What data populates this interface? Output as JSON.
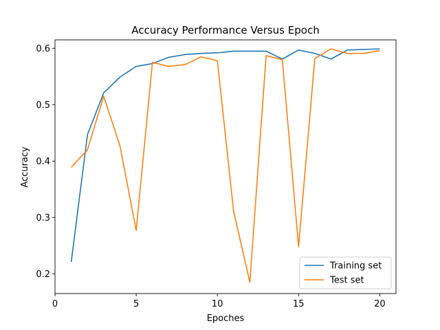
{
  "chart_data": {
    "type": "line",
    "title": "Accuracy Performance Versus Epoch",
    "xlabel": "Epoches",
    "ylabel": "Accuracy",
    "xlim": [
      0,
      21
    ],
    "ylim": [
      0.165,
      0.615
    ],
    "xticks": [
      0,
      5,
      10,
      15,
      20
    ],
    "yticks": [
      0.2,
      0.3,
      0.4,
      0.5,
      0.6
    ],
    "grid": false,
    "legend_position": "lower-right",
    "x": [
      1,
      2,
      3,
      4,
      5,
      6,
      7,
      8,
      9,
      10,
      11,
      12,
      13,
      14,
      15,
      16,
      17,
      18,
      19,
      20
    ],
    "series": [
      {
        "name": "Training set",
        "color": "#1f77b4",
        "values": [
          0.221,
          0.447,
          0.521,
          0.549,
          0.568,
          0.573,
          0.584,
          0.589,
          0.591,
          0.592,
          0.595,
          0.595,
          0.595,
          0.581,
          0.597,
          0.591,
          0.581,
          0.597,
          0.598,
          0.599
        ]
      },
      {
        "name": "Test set",
        "color": "#ff7f0e",
        "values": [
          0.389,
          0.42,
          0.515,
          0.427,
          0.277,
          0.575,
          0.568,
          0.571,
          0.585,
          0.578,
          0.311,
          0.185,
          0.587,
          0.58,
          0.248,
          0.582,
          0.599,
          0.591,
          0.591,
          0.596
        ]
      }
    ]
  }
}
